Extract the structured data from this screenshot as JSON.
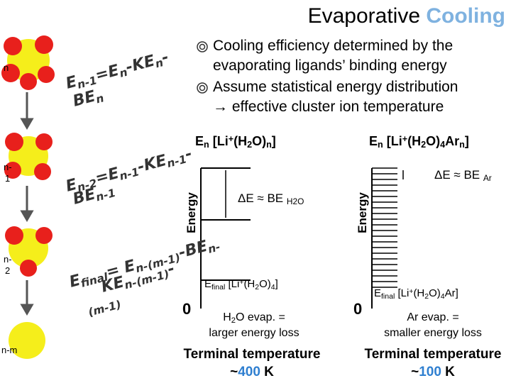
{
  "title": {
    "main": "Evaporative",
    "accent": "Cooling"
  },
  "bullets": [
    "Cooling efficiency determined by the evaporating ligands’ binding energy",
    "Assume statistical energy distribution → effective cluster ion temperature"
  ],
  "cluster_labels": [
    "n",
    "n-1",
    "n-2",
    "n-m"
  ],
  "equations": [
    [
      [
        {
          "text": "E",
          "style": "normal"
        },
        {
          "text": "n-1",
          "style": "sub"
        },
        {
          "text": "=E",
          "style": "normal"
        },
        {
          "text": "n",
          "style": "sub"
        },
        {
          "text": "-KE",
          "style": "normal"
        },
        {
          "text": "n",
          "style": "sub"
        },
        {
          "text": "-",
          "style": "normal"
        }
      ],
      [
        {
          "text": "BE",
          "style": "normal"
        },
        {
          "text": "n",
          "style": "sub"
        }
      ]
    ],
    [
      [
        {
          "text": "E",
          "style": "normal"
        },
        {
          "text": "n-2",
          "style": "sub"
        },
        {
          "text": "=E",
          "style": "normal"
        },
        {
          "text": "n-1",
          "style": "sub"
        },
        {
          "text": "-KE",
          "style": "normal"
        },
        {
          "text": "n-1",
          "style": "sub"
        },
        {
          "text": "-",
          "style": "normal"
        }
      ],
      [
        {
          "text": "BE",
          "style": "normal"
        },
        {
          "text": "n-1",
          "style": "sub"
        }
      ]
    ],
    [
      [
        {
          "text": "E",
          "style": "normal"
        },
        {
          "text": "final",
          "style": "sub"
        },
        {
          "text": "= E",
          "style": "normal"
        },
        {
          "text": "n-(m-1)",
          "style": "sub"
        },
        {
          "text": "-BE",
          "style": "normal"
        },
        {
          "text": "n-",
          "style": "sub"
        }
      ],
      [
        {
          "text": "KE",
          "style": "normal"
        },
        {
          "text": "n-(m-1)",
          "style": "sub"
        },
        {
          "text": "-",
          "style": "normal"
        }
      ],
      [
        {
          "text": "(m-1)",
          "style": "sub"
        }
      ]
    ]
  ],
  "panels": [
    {
      "header": [
        {
          "text": "E",
          "style": "normal"
        },
        {
          "text": "n",
          "style": "sub"
        },
        {
          "text": " [Li",
          "style": "normal"
        },
        {
          "text": "+",
          "style": "sup"
        },
        {
          "text": "(H",
          "style": "normal"
        },
        {
          "text": "2",
          "style": "sub"
        },
        {
          "text": "O)",
          "style": "normal"
        },
        {
          "text": "n",
          "style": "sub"
        },
        {
          "text": "]",
          "style": "normal"
        }
      ],
      "axis_label": "Energy",
      "zero": "0",
      "delta": [
        {
          "text": "ΔE ≈ BE ",
          "style": "normal"
        },
        {
          "text": "H2O",
          "style": "sub"
        }
      ],
      "final": [
        {
          "text": "E",
          "style": "normal"
        },
        {
          "text": "final",
          "style": "sub"
        },
        {
          "text": " [Li",
          "style": "normal"
        },
        {
          "text": "+",
          "style": "sup"
        },
        {
          "text": "(H",
          "style": "normal"
        },
        {
          "text": "2",
          "style": "sub"
        },
        {
          "text": "O)",
          "style": "normal"
        },
        {
          "text": "4",
          "style": "sub"
        },
        {
          "text": "]",
          "style": "normal"
        }
      ],
      "evap": [
        [
          {
            "text": "H",
            "style": "normal"
          },
          {
            "text": "2",
            "style": "sub"
          },
          {
            "text": "O evap. =",
            "style": "normal"
          }
        ],
        [
          {
            "text": "larger energy loss",
            "style": "normal"
          }
        ]
      ],
      "terminal": "Terminal temperature",
      "temp_prefix": "~",
      "temp_value": "400",
      "temp_unit": " K"
    },
    {
      "header": [
        {
          "text": "E",
          "style": "normal"
        },
        {
          "text": "n",
          "style": "sub"
        },
        {
          "text": " [Li",
          "style": "normal"
        },
        {
          "text": "+",
          "style": "sup"
        },
        {
          "text": "(H",
          "style": "normal"
        },
        {
          "text": "2",
          "style": "sub"
        },
        {
          "text": "O)",
          "style": "normal"
        },
        {
          "text": "4",
          "style": "sub"
        },
        {
          "text": "Ar",
          "style": "normal"
        },
        {
          "text": "n",
          "style": "sub"
        },
        {
          "text": "]",
          "style": "normal"
        }
      ],
      "axis_label": "Energy",
      "zero": "0",
      "delta": [
        {
          "text": "ΔE ≈ BE ",
          "style": "normal"
        },
        {
          "text": "Ar",
          "style": "sub"
        }
      ],
      "final": [
        {
          "text": "E",
          "style": "normal"
        },
        {
          "text": "final",
          "style": "sub"
        },
        {
          "text": " [Li",
          "style": "normal"
        },
        {
          "text": "+",
          "style": "sup"
        },
        {
          "text": "(H",
          "style": "normal"
        },
        {
          "text": "2",
          "style": "sub"
        },
        {
          "text": "O)",
          "style": "normal"
        },
        {
          "text": "4",
          "style": "sub"
        },
        {
          "text": "Ar]",
          "style": "normal"
        }
      ],
      "evap": [
        [
          {
            "text": "Ar evap. =",
            "style": "normal"
          }
        ],
        [
          {
            "text": "smaller energy loss",
            "style": "normal"
          }
        ]
      ],
      "terminal": "Terminal temperature",
      "temp_prefix": "~",
      "temp_value": "100",
      "temp_unit": " K"
    }
  ]
}
